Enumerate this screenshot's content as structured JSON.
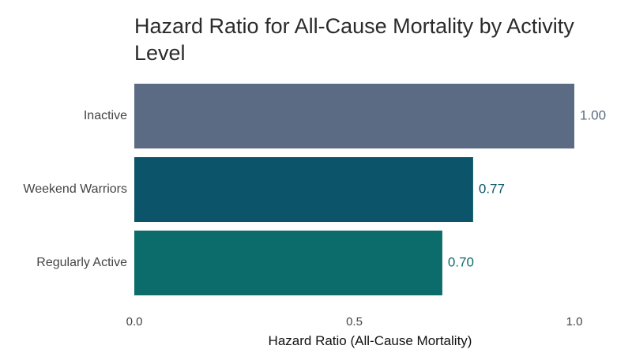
{
  "chart_data": {
    "type": "bar",
    "orientation": "horizontal",
    "title": "Hazard Ratio for All-Cause Mortality by Activity Level",
    "xlabel": "Hazard Ratio (All-Cause Mortality)",
    "ylabel": "",
    "categories": [
      "Inactive",
      "Weekend Warriors",
      "Regularly Active"
    ],
    "values": [
      1.0,
      0.77,
      0.7
    ],
    "value_labels": [
      "1.00",
      "0.77",
      "0.70"
    ],
    "colors": [
      "#5b6b83",
      "#0b5469",
      "#0c6b6b"
    ],
    "label_colors": [
      "#5b6b83",
      "#0b5469",
      "#0c6b6b"
    ],
    "xlim": [
      0,
      1.0
    ],
    "xticks": [
      {
        "value": 0.0,
        "label": "0.0"
      },
      {
        "value": 0.5,
        "label": "0.5"
      },
      {
        "value": 1.0,
        "label": "1.0"
      }
    ],
    "grid": false,
    "legend": "none"
  }
}
